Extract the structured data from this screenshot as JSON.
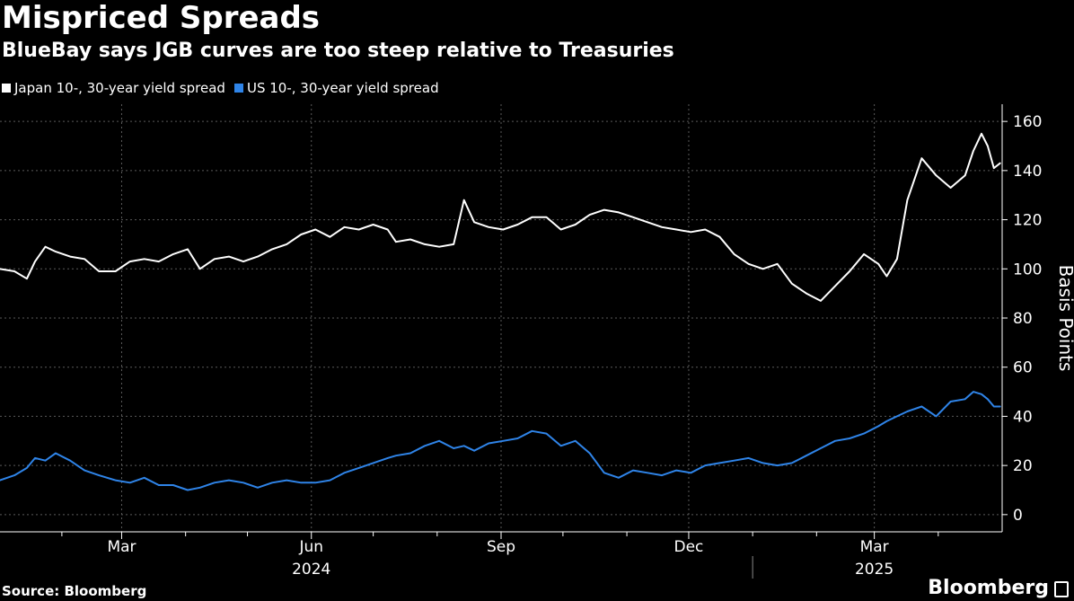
{
  "chart_data": {
    "type": "line",
    "title": "Mispriced Spreads",
    "subtitle": "BlueBay says JGB curves are too steep relative to Treasuries",
    "ylabel": "Basis Points",
    "xlabel": "",
    "ylim": [
      -7,
      167
    ],
    "xlim": [
      "2024-01-02",
      "2025-05-02"
    ],
    "y_ticks": [
      0,
      20,
      40,
      60,
      80,
      100,
      120,
      140,
      160
    ],
    "y_axis_side": "right",
    "x_tick_labels": [
      {
        "date": "2024-03-01",
        "label": "Mar"
      },
      {
        "date": "2024-06-01",
        "label": "Jun"
      },
      {
        "date": "2024-09-01",
        "label": "Sep"
      },
      {
        "date": "2024-12-01",
        "label": "Dec"
      },
      {
        "date": "2025-03-01",
        "label": "Mar"
      }
    ],
    "x_minor_ticks": [
      "2024-02-01",
      "2024-04-01",
      "2024-05-01",
      "2024-07-01",
      "2024-08-01",
      "2024-10-01",
      "2024-11-01",
      "2025-01-01",
      "2025-02-01",
      "2025-04-01"
    ],
    "year_labels": [
      {
        "date": "2024-06-01",
        "label": "2024"
      },
      {
        "date": "2025-03-01",
        "label": "2025"
      }
    ],
    "year_divider": "2025-01-01",
    "vertical_grid": [
      "2024-03-01",
      "2024-06-01",
      "2024-09-01",
      "2024-12-01",
      "2025-03-01"
    ],
    "grid": true,
    "legend_position": "top-left",
    "source": "Source: Bloomberg",
    "series": [
      {
        "name": "Japan 10-, 30-year yield spread",
        "color": "#ffffff",
        "points": [
          [
            "2024-01-02",
            100
          ],
          [
            "2024-01-09",
            99
          ],
          [
            "2024-01-15",
            96
          ],
          [
            "2024-01-19",
            103
          ],
          [
            "2024-01-24",
            109
          ],
          [
            "2024-01-29",
            107
          ],
          [
            "2024-02-05",
            105
          ],
          [
            "2024-02-12",
            104
          ],
          [
            "2024-02-19",
            99
          ],
          [
            "2024-02-27",
            99
          ],
          [
            "2024-03-05",
            103
          ],
          [
            "2024-03-12",
            104
          ],
          [
            "2024-03-19",
            103
          ],
          [
            "2024-03-26",
            106
          ],
          [
            "2024-04-02",
            108
          ],
          [
            "2024-04-08",
            100
          ],
          [
            "2024-04-15",
            104
          ],
          [
            "2024-04-22",
            105
          ],
          [
            "2024-04-29",
            103
          ],
          [
            "2024-05-06",
            105
          ],
          [
            "2024-05-13",
            108
          ],
          [
            "2024-05-20",
            110
          ],
          [
            "2024-05-27",
            114
          ],
          [
            "2024-06-03",
            116
          ],
          [
            "2024-06-10",
            113
          ],
          [
            "2024-06-17",
            117
          ],
          [
            "2024-06-24",
            116
          ],
          [
            "2024-07-01",
            118
          ],
          [
            "2024-07-08",
            116
          ],
          [
            "2024-07-12",
            111
          ],
          [
            "2024-07-19",
            112
          ],
          [
            "2024-07-26",
            110
          ],
          [
            "2024-08-02",
            109
          ],
          [
            "2024-08-09",
            110
          ],
          [
            "2024-08-14",
            128
          ],
          [
            "2024-08-19",
            119
          ],
          [
            "2024-08-26",
            117
          ],
          [
            "2024-09-02",
            116
          ],
          [
            "2024-09-09",
            118
          ],
          [
            "2024-09-16",
            121
          ],
          [
            "2024-09-23",
            121
          ],
          [
            "2024-09-30",
            116
          ],
          [
            "2024-10-07",
            118
          ],
          [
            "2024-10-14",
            122
          ],
          [
            "2024-10-21",
            124
          ],
          [
            "2024-10-28",
            123
          ],
          [
            "2024-11-04",
            121
          ],
          [
            "2024-11-11",
            119
          ],
          [
            "2024-11-18",
            117
          ],
          [
            "2024-11-25",
            116
          ],
          [
            "2024-12-02",
            115
          ],
          [
            "2024-12-09",
            116
          ],
          [
            "2024-12-16",
            113
          ],
          [
            "2024-12-23",
            106
          ],
          [
            "2024-12-30",
            102
          ],
          [
            "2025-01-06",
            100
          ],
          [
            "2025-01-13",
            102
          ],
          [
            "2025-01-20",
            94
          ],
          [
            "2025-01-27",
            90
          ],
          [
            "2025-02-03",
            87
          ],
          [
            "2025-02-10",
            93
          ],
          [
            "2025-02-17",
            99
          ],
          [
            "2025-02-24",
            106
          ],
          [
            "2025-03-03",
            102
          ],
          [
            "2025-03-07",
            97
          ],
          [
            "2025-03-12",
            104
          ],
          [
            "2025-03-17",
            128
          ],
          [
            "2025-03-24",
            145
          ],
          [
            "2025-03-31",
            138
          ],
          [
            "2025-04-07",
            133
          ],
          [
            "2025-04-14",
            138
          ],
          [
            "2025-04-18",
            148
          ],
          [
            "2025-04-22",
            155
          ],
          [
            "2025-04-25",
            150
          ],
          [
            "2025-04-28",
            141
          ],
          [
            "2025-05-01",
            143
          ]
        ]
      },
      {
        "name": "US 10-, 30-year yield spread",
        "color": "#2f84e8",
        "points": [
          [
            "2024-01-02",
            14
          ],
          [
            "2024-01-09",
            16
          ],
          [
            "2024-01-15",
            19
          ],
          [
            "2024-01-19",
            23
          ],
          [
            "2024-01-24",
            22
          ],
          [
            "2024-01-29",
            25
          ],
          [
            "2024-02-05",
            22
          ],
          [
            "2024-02-12",
            18
          ],
          [
            "2024-02-19",
            16
          ],
          [
            "2024-02-27",
            14
          ],
          [
            "2024-03-05",
            13
          ],
          [
            "2024-03-12",
            15
          ],
          [
            "2024-03-19",
            12
          ],
          [
            "2024-03-26",
            12
          ],
          [
            "2024-04-02",
            10
          ],
          [
            "2024-04-08",
            11
          ],
          [
            "2024-04-15",
            13
          ],
          [
            "2024-04-22",
            14
          ],
          [
            "2024-04-29",
            13
          ],
          [
            "2024-05-06",
            11
          ],
          [
            "2024-05-13",
            13
          ],
          [
            "2024-05-20",
            14
          ],
          [
            "2024-05-27",
            13
          ],
          [
            "2024-06-03",
            13
          ],
          [
            "2024-06-10",
            14
          ],
          [
            "2024-06-17",
            17
          ],
          [
            "2024-06-24",
            19
          ],
          [
            "2024-07-01",
            21
          ],
          [
            "2024-07-08",
            23
          ],
          [
            "2024-07-12",
            24
          ],
          [
            "2024-07-19",
            25
          ],
          [
            "2024-07-26",
            28
          ],
          [
            "2024-08-02",
            30
          ],
          [
            "2024-08-09",
            27
          ],
          [
            "2024-08-14",
            28
          ],
          [
            "2024-08-19",
            26
          ],
          [
            "2024-08-26",
            29
          ],
          [
            "2024-09-02",
            30
          ],
          [
            "2024-09-09",
            31
          ],
          [
            "2024-09-16",
            34
          ],
          [
            "2024-09-23",
            33
          ],
          [
            "2024-09-30",
            28
          ],
          [
            "2024-10-07",
            30
          ],
          [
            "2024-10-14",
            25
          ],
          [
            "2024-10-21",
            17
          ],
          [
            "2024-10-28",
            15
          ],
          [
            "2024-11-04",
            18
          ],
          [
            "2024-11-11",
            17
          ],
          [
            "2024-11-18",
            16
          ],
          [
            "2024-11-25",
            18
          ],
          [
            "2024-12-02",
            17
          ],
          [
            "2024-12-09",
            20
          ],
          [
            "2024-12-16",
            21
          ],
          [
            "2024-12-23",
            22
          ],
          [
            "2024-12-30",
            23
          ],
          [
            "2025-01-06",
            21
          ],
          [
            "2025-01-13",
            20
          ],
          [
            "2025-01-20",
            21
          ],
          [
            "2025-01-27",
            24
          ],
          [
            "2025-02-03",
            27
          ],
          [
            "2025-02-10",
            30
          ],
          [
            "2025-02-17",
            31
          ],
          [
            "2025-02-24",
            33
          ],
          [
            "2025-03-03",
            36
          ],
          [
            "2025-03-07",
            38
          ],
          [
            "2025-03-12",
            40
          ],
          [
            "2025-03-17",
            42
          ],
          [
            "2025-03-24",
            44
          ],
          [
            "2025-03-31",
            40
          ],
          [
            "2025-04-07",
            46
          ],
          [
            "2025-04-14",
            47
          ],
          [
            "2025-04-18",
            50
          ],
          [
            "2025-04-22",
            49
          ],
          [
            "2025-04-25",
            47
          ],
          [
            "2025-04-28",
            44
          ],
          [
            "2025-05-01",
            44
          ]
        ]
      }
    ]
  },
  "branding": {
    "logo_text": "Bloomberg"
  }
}
